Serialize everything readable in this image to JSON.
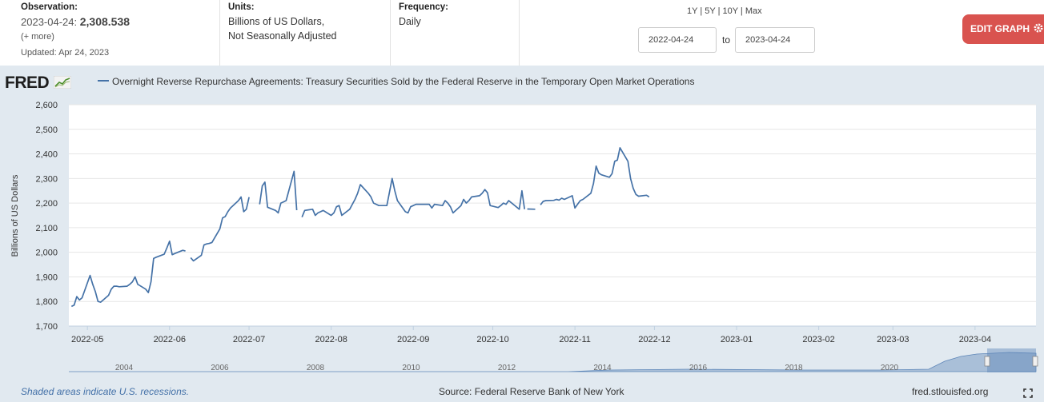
{
  "observation": {
    "label": "Observation:",
    "date": "2023-04-24:",
    "value": "2,308.538",
    "more": "(+ more)",
    "updated": "Updated: Apr 24, 2023"
  },
  "units": {
    "label": "Units:",
    "line1": "Billions of US Dollars,",
    "line2": "Not Seasonally Adjusted"
  },
  "frequency": {
    "label": "Frequency:",
    "value": "Daily"
  },
  "ranges": [
    "1Y",
    "5Y",
    "10Y",
    "Max"
  ],
  "date_range": {
    "start": "2022-04-24",
    "to": "to",
    "end": "2023-04-24"
  },
  "edit_button": "EDIT GRAPH",
  "logo": "FRED",
  "footer": {
    "recession_note": "Shaded areas indicate U.S. recessions.",
    "source": "Source: Federal Reserve Bank of New York",
    "site": "fred.stlouisfed.org"
  },
  "colors": {
    "line": "#4572a7",
    "chart_bg": "#e1e9f0",
    "edit_button": "#d9534f"
  },
  "navigator": {
    "years": [
      "2004",
      "2006",
      "2008",
      "2010",
      "2012",
      "2014",
      "2016",
      "2018",
      "2020"
    ]
  },
  "chart_data": {
    "type": "line",
    "title": "Overnight Reverse Repurchase Agreements: Treasury Securities Sold by the Federal Reserve in the Temporary Open Market Operations",
    "ylabel": "Billions of US Dollars",
    "ylim": [
      1700,
      2600
    ],
    "yticks": [
      1700,
      1800,
      1900,
      2000,
      2100,
      2200,
      2300,
      2400,
      2500,
      2600
    ],
    "ytick_labels": [
      "1,700",
      "1,800",
      "1,900",
      "2,000",
      "2,100",
      "2,200",
      "2,300",
      "2,400",
      "2,500",
      "2,600"
    ],
    "xlim": [
      "2022-04-24",
      "2023-04-24"
    ],
    "xticks": [
      "2022-05-01",
      "2022-06-01",
      "2022-07-01",
      "2022-08-01",
      "2022-09-01",
      "2022-10-01",
      "2022-11-01",
      "2022-12-01",
      "2023-01-01",
      "2023-02-01",
      "2023-03-01",
      "2023-04-01"
    ],
    "xtick_labels": [
      "2022-05",
      "2022-06",
      "2022-07",
      "2022-08",
      "2022-09",
      "2022-10",
      "2022-11",
      "2022-12",
      "2023-01",
      "2023-02",
      "2023-03",
      "2023-04"
    ],
    "grid": true,
    "series": [
      {
        "segments": [
          [
            [
              "2022-04-25",
              1780
            ],
            [
              "2022-04-26",
              1785
            ],
            [
              "2022-04-27",
              1820
            ],
            [
              "2022-04-28",
              1806
            ],
            [
              "2022-04-29",
              1815
            ],
            [
              "2022-05-02",
              1906
            ],
            [
              "2022-05-03",
              1870
            ],
            [
              "2022-05-04",
              1840
            ],
            [
              "2022-05-05",
              1800
            ],
            [
              "2022-05-06",
              1797
            ],
            [
              "2022-05-09",
              1825
            ],
            [
              "2022-05-10",
              1850
            ],
            [
              "2022-05-11",
              1862
            ],
            [
              "2022-05-12",
              1862
            ],
            [
              "2022-05-13",
              1860
            ],
            [
              "2022-05-16",
              1862
            ],
            [
              "2022-05-17",
              1870
            ],
            [
              "2022-05-18",
              1880
            ],
            [
              "2022-05-19",
              1900
            ],
            [
              "2022-05-20",
              1870
            ],
            [
              "2022-05-23",
              1850
            ],
            [
              "2022-05-24",
              1836
            ],
            [
              "2022-05-25",
              1880
            ],
            [
              "2022-05-26",
              1975
            ],
            [
              "2022-05-27",
              1980
            ],
            [
              "2022-05-30",
              1992
            ],
            [
              "2022-05-31",
              2018
            ],
            [
              "2022-06-01",
              2045
            ],
            [
              "2022-06-02",
              1990
            ],
            [
              "2022-06-03",
              1995
            ],
            [
              "2022-06-06",
              2008
            ],
            [
              "2022-06-07",
              2005
            ]
          ],
          [
            [
              "2022-06-09",
              1978
            ],
            [
              "2022-06-10",
              1965
            ],
            [
              "2022-06-13",
              1988
            ],
            [
              "2022-06-14",
              2030
            ],
            [
              "2022-06-15",
              2034
            ],
            [
              "2022-06-16",
              2036
            ],
            [
              "2022-06-17",
              2040
            ],
            [
              "2022-06-20",
              2095
            ],
            [
              "2022-06-21",
              2140
            ],
            [
              "2022-06-22",
              2145
            ],
            [
              "2022-06-23",
              2165
            ],
            [
              "2022-06-24",
              2180
            ],
            [
              "2022-06-27",
              2210
            ],
            [
              "2022-06-28",
              2225
            ],
            [
              "2022-06-29",
              2165
            ],
            [
              "2022-06-30",
              2175
            ],
            [
              "2022-07-01",
              2224
            ]
          ],
          [
            [
              "2022-07-05",
              2195
            ],
            [
              "2022-07-06",
              2270
            ],
            [
              "2022-07-07",
              2285
            ],
            [
              "2022-07-08",
              2183
            ],
            [
              "2022-07-11",
              2170
            ],
            [
              "2022-07-12",
              2160
            ],
            [
              "2022-07-13",
              2200
            ],
            [
              "2022-07-14",
              2205
            ],
            [
              "2022-07-15",
              2210
            ],
            [
              "2022-07-18",
              2329
            ],
            [
              "2022-07-19",
              2171
            ]
          ],
          [
            [
              "2022-07-21",
              2143
            ],
            [
              "2022-07-22",
              2170
            ],
            [
              "2022-07-25",
              2175
            ],
            [
              "2022-07-26",
              2150
            ],
            [
              "2022-07-27",
              2160
            ],
            [
              "2022-07-28",
              2165
            ],
            [
              "2022-07-29",
              2170
            ],
            [
              "2022-08-01",
              2150
            ],
            [
              "2022-08-02",
              2160
            ],
            [
              "2022-08-03",
              2185
            ],
            [
              "2022-08-04",
              2190
            ],
            [
              "2022-08-05",
              2150
            ],
            [
              "2022-08-08",
              2175
            ],
            [
              "2022-08-09",
              2195
            ],
            [
              "2022-08-10",
              2215
            ],
            [
              "2022-08-11",
              2240
            ],
            [
              "2022-08-12",
              2275
            ],
            [
              "2022-08-15",
              2240
            ],
            [
              "2022-08-16",
              2225
            ],
            [
              "2022-08-17",
              2200
            ],
            [
              "2022-08-18",
              2195
            ],
            [
              "2022-08-19",
              2190
            ],
            [
              "2022-08-22",
              2190
            ],
            [
              "2022-08-23",
              2245
            ],
            [
              "2022-08-24",
              2300
            ],
            [
              "2022-08-25",
              2250
            ],
            [
              "2022-08-26",
              2210
            ],
            [
              "2022-08-29",
              2165
            ],
            [
              "2022-08-30",
              2160
            ],
            [
              "2022-08-31",
              2185
            ],
            [
              "2022-09-01",
              2190
            ],
            [
              "2022-09-02",
              2195
            ],
            [
              "2022-09-06",
              2195
            ],
            [
              "2022-09-07",
              2195
            ],
            [
              "2022-09-08",
              2180
            ],
            [
              "2022-09-09",
              2195
            ],
            [
              "2022-09-12",
              2190
            ],
            [
              "2022-09-13",
              2210
            ],
            [
              "2022-09-14",
              2200
            ],
            [
              "2022-09-15",
              2185
            ],
            [
              "2022-09-16",
              2160
            ],
            [
              "2022-09-19",
              2190
            ],
            [
              "2022-09-20",
              2215
            ],
            [
              "2022-09-21",
              2200
            ],
            [
              "2022-09-22",
              2210
            ],
            [
              "2022-09-23",
              2225
            ],
            [
              "2022-09-26",
              2230
            ],
            [
              "2022-09-27",
              2240
            ],
            [
              "2022-09-28",
              2255
            ],
            [
              "2022-09-29",
              2242
            ],
            [
              "2022-09-30",
              2190
            ],
            [
              "2022-10-03",
              2182
            ],
            [
              "2022-10-04",
              2190
            ],
            [
              "2022-10-05",
              2200
            ],
            [
              "2022-10-06",
              2195
            ],
            [
              "2022-10-07",
              2210
            ],
            [
              "2022-10-11",
              2175
            ],
            [
              "2022-10-12",
              2250
            ],
            [
              "2022-10-13",
              2175
            ]
          ],
          [
            [
              "2022-10-14",
              2176
            ],
            [
              "2022-10-17",
              2175
            ]
          ],
          [
            [
              "2022-10-19",
              2193
            ],
            [
              "2022-10-20",
              2207
            ],
            [
              "2022-10-21",
              2210
            ],
            [
              "2022-10-24",
              2211
            ],
            [
              "2022-10-25",
              2215
            ],
            [
              "2022-10-26",
              2212
            ],
            [
              "2022-10-27",
              2220
            ],
            [
              "2022-10-28",
              2215
            ],
            [
              "2022-10-31",
              2230
            ],
            [
              "2022-11-01",
              2180
            ],
            [
              "2022-11-02",
              2195
            ],
            [
              "2022-11-03",
              2210
            ],
            [
              "2022-11-04",
              2215
            ],
            [
              "2022-11-07",
              2240
            ],
            [
              "2022-11-08",
              2280
            ],
            [
              "2022-11-09",
              2350
            ],
            [
              "2022-11-10",
              2322
            ],
            [
              "2022-11-11",
              2315
            ],
            [
              "2022-11-14",
              2305
            ],
            [
              "2022-11-15",
              2320
            ],
            [
              "2022-11-16",
              2370
            ],
            [
              "2022-11-17",
              2375
            ],
            [
              "2022-11-18",
              2425
            ],
            [
              "2022-11-21",
              2370
            ],
            [
              "2022-11-22",
              2300
            ],
            [
              "2022-11-23",
              2260
            ],
            [
              "2022-11-24",
              2235
            ],
            [
              "2022-11-25",
              2228
            ],
            [
              "2022-11-28",
              2232
            ],
            [
              "2022-11-29",
              2225
            ]
          ]
        ]
      }
    ]
  }
}
